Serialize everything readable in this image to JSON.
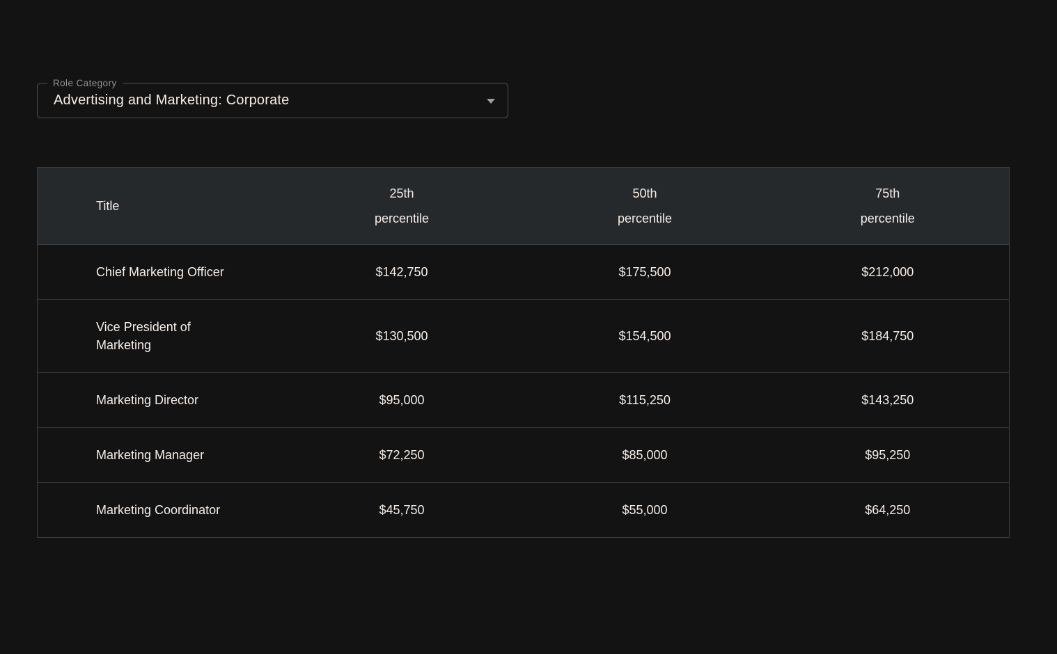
{
  "role_category": {
    "label": "Role Category",
    "value": "Advertising and Marketing: Corporate"
  },
  "table": {
    "columns": [
      {
        "label": "Title"
      },
      {
        "label": "25th",
        "sub": "percentile"
      },
      {
        "label": "50th",
        "sub": "percentile"
      },
      {
        "label": "75th",
        "sub": "percentile"
      }
    ],
    "rows": [
      {
        "title": "Chief Marketing Officer",
        "p25": "$142,750",
        "p50": "$175,500",
        "p75": "$212,000"
      },
      {
        "title": "Vice President of Marketing",
        "p25": "$130,500",
        "p50": "$154,500",
        "p75": "$184,750"
      },
      {
        "title": "Marketing Director",
        "p25": "$95,000",
        "p50": "$115,250",
        "p75": "$143,250"
      },
      {
        "title": "Marketing Manager",
        "p25": "$72,250",
        "p50": "$85,000",
        "p75": "$95,250"
      },
      {
        "title": "Marketing Coordinator",
        "p25": "$45,750",
        "p50": "$55,000",
        "p75": "$64,250"
      }
    ]
  },
  "colors": {
    "page_bg": "#131313",
    "header_bg": "#25292c",
    "border": "#3c3f41",
    "divider": "#353535",
    "text": "#f6ece5",
    "label_text": "#929292",
    "select_border": "#4e4e4e",
    "arrow": "#9e9e9e"
  }
}
